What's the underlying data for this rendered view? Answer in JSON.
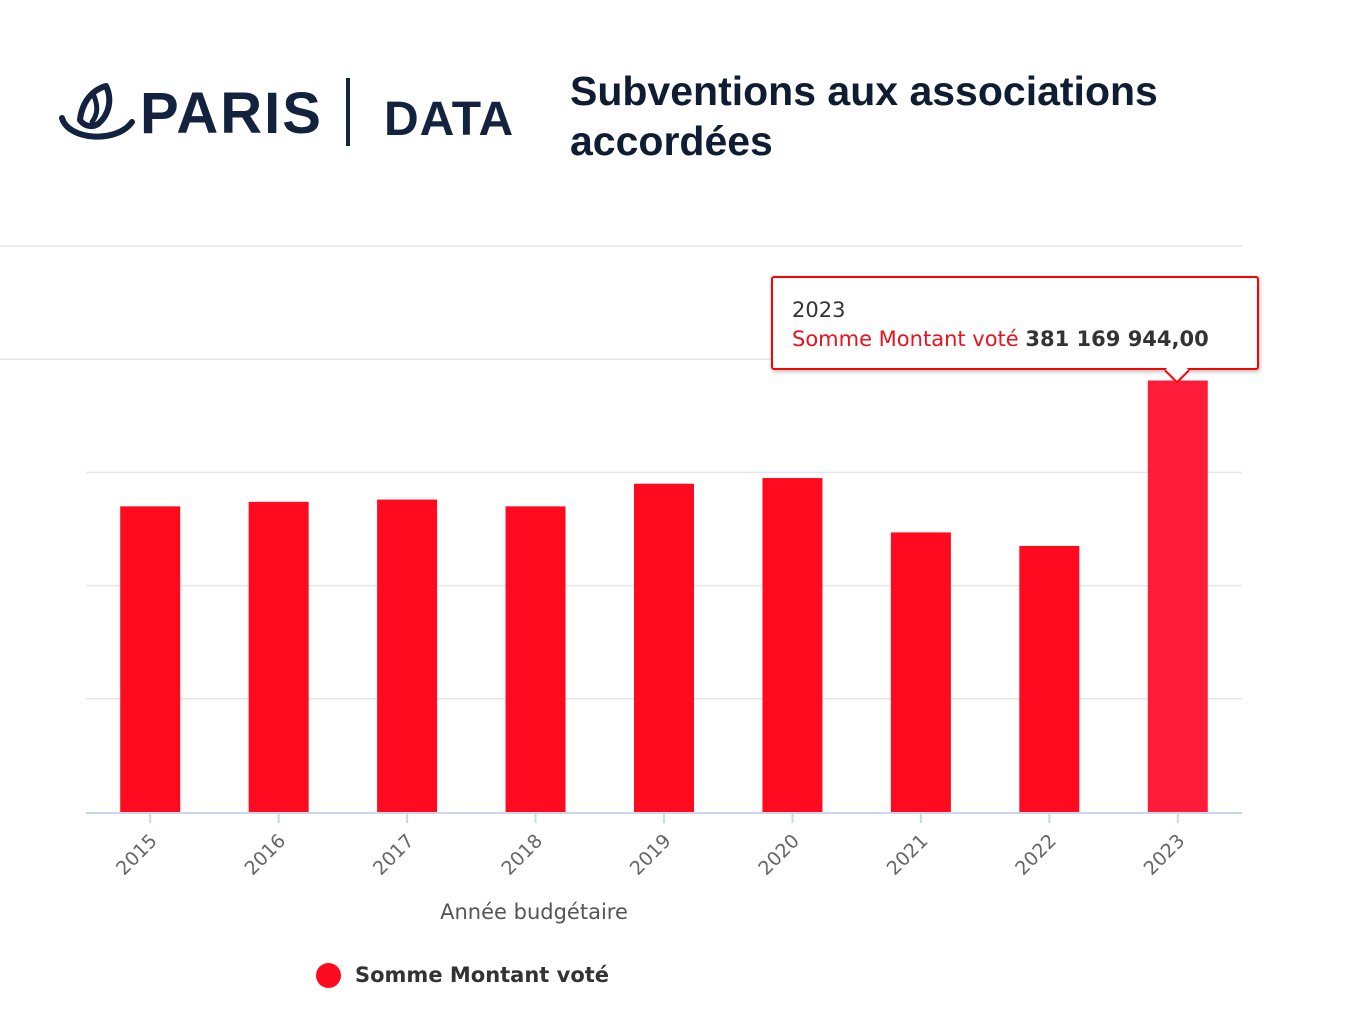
{
  "header": {
    "logo_word_1": "PARIS",
    "logo_word_2": "DATA",
    "title": "Subventions aux associations accordées"
  },
  "colors": {
    "bar": "#ff0a1e",
    "bar_highlight": "#ff1c3a",
    "title": "#0f1d33",
    "grid": "#e6e6e6",
    "axis": "#ccd6eb"
  },
  "icons": {
    "logo_mark": "paris-ship-icon"
  },
  "chart_data": {
    "type": "bar",
    "title": "Subventions aux associations accordées",
    "xlabel": "Année budgétaire",
    "ylabel": "",
    "categories": [
      "2015",
      "2016",
      "2017",
      "2018",
      "2019",
      "2020",
      "2021",
      "2022",
      "2023"
    ],
    "series": [
      {
        "name": "Somme Montant voté",
        "values": [
          270000000,
          274000000,
          276000000,
          270000000,
          290000000,
          295000000,
          247000000,
          235000000,
          381169944
        ]
      }
    ],
    "ylim": [
      0,
      500000000
    ],
    "y_grid_step": 100000000,
    "grid": true,
    "x_tick_rotation": -45,
    "legend": "bottom-left",
    "highlighted_index": 8,
    "tooltip": {
      "category": "2023",
      "series_name": "Somme Montant voté",
      "value": "381 169 944,00"
    }
  }
}
